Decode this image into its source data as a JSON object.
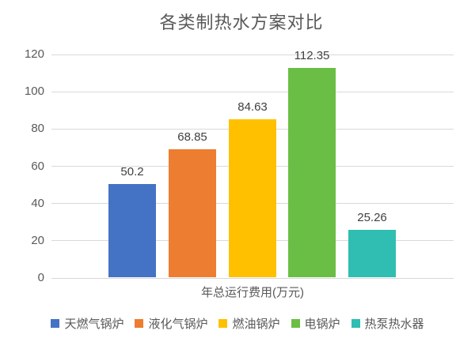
{
  "title": "各类制热水方案对比",
  "chart_data": {
    "type": "bar",
    "title": "各类制热水方案对比",
    "categories": [
      "天燃气锅炉",
      "液化气锅炉",
      "燃油锅炉",
      "电锅炉",
      "热泵热水器"
    ],
    "values": [
      50.2,
      68.85,
      84.63,
      112.35,
      25.26
    ],
    "data_labels": [
      "50.2",
      "68.85",
      "84.63",
      "112.35",
      "25.26"
    ],
    "bar_colors": [
      "#4472C4",
      "#ED7D31",
      "#FFC000",
      "#6BBE45",
      "#30BDB2"
    ],
    "xlabel": "年总运行费用(万元)",
    "ylabel": "",
    "ylim": [
      0,
      120
    ],
    "yticks": [
      0,
      20,
      40,
      60,
      80,
      100,
      120
    ],
    "grid": true,
    "gridline_color": "#D9D9D9",
    "legend_position": "bottom",
    "legend_entries": [
      "天燃气锅炉",
      "液化气锅炉",
      "燃油锅炉",
      "电锅炉",
      "热泵热水器"
    ],
    "text_colors": {
      "title": "#595959",
      "ticks": "#595959",
      "data_labels": "#404040",
      "legend": "#595959"
    }
  }
}
